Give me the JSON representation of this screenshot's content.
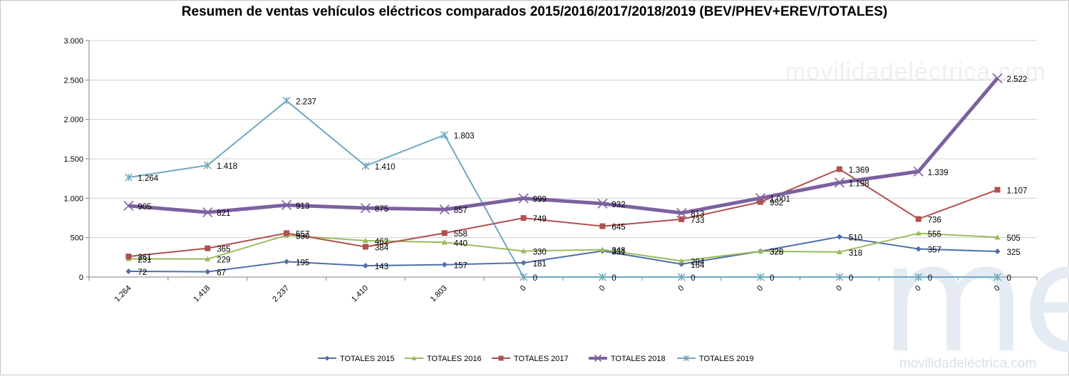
{
  "chart_data": {
    "type": "line",
    "title": "Resumen de ventas vehículos eléctricos comparados 2015/2016/2017/2018/2019  (BEV/PHEV+EREV/TOTALES)",
    "categories": [
      "1.264",
      "1.418",
      "2.237",
      "1.410",
      "1.803",
      "0",
      "0",
      "0",
      "0",
      "0",
      "0",
      "0"
    ],
    "ylim": [
      0,
      3000
    ],
    "yticks": [
      0,
      500,
      1000,
      1500,
      2000,
      2500,
      3000
    ],
    "ytick_labels": [
      "0",
      "500",
      "1.000",
      "1.500",
      "2.000",
      "2.500",
      "3.000"
    ],
    "grid": "horizontal",
    "legend_position": "bottom",
    "series": [
      {
        "name": "TOTALES 2015",
        "color": "#4f6fa8",
        "marker": "diamond",
        "values": [
          72,
          67,
          195,
          143,
          157,
          181,
          331,
          164,
          328,
          510,
          357,
          325
        ],
        "labels": [
          "72",
          "67",
          "195",
          "143",
          "157",
          "181",
          "331",
          "164",
          "328",
          "510",
          "357",
          "325"
        ]
      },
      {
        "name": "TOTALES 2016",
        "color": "#9bbb59",
        "marker": "triangle",
        "values": [
          231,
          229,
          530,
          462,
          440,
          330,
          348,
          204,
          328,
          318,
          555,
          505
        ],
        "labels": [
          "231",
          "229",
          "530",
          "462",
          "440",
          "330",
          "348",
          "204",
          "328",
          "318",
          "555",
          "505"
        ]
      },
      {
        "name": "TOTALES 2017",
        "color": "#b0504d",
        "marker": "square",
        "values": [
          261,
          365,
          557,
          384,
          558,
          749,
          645,
          733,
          952,
          1369,
          736,
          1107
        ],
        "labels": [
          "261",
          "365",
          "557",
          "384",
          "558",
          "749",
          "645",
          "733",
          "952",
          "1.369",
          "736",
          "1.107"
        ]
      },
      {
        "name": "TOTALES 2018",
        "color": "#7d60a0",
        "marker": "x",
        "values": [
          905,
          821,
          913,
          875,
          857,
          999,
          932,
          813,
          1001,
          1198,
          1339,
          2522
        ],
        "labels": [
          "905",
          "821",
          "913",
          "875",
          "857",
          "999",
          "932",
          "813",
          "1.001",
          "1.198",
          "1.339",
          "2.522"
        ]
      },
      {
        "name": "TOTALES 2019",
        "color": "#6ea9c1",
        "marker": "star",
        "values": [
          1264,
          1418,
          2237,
          1410,
          1803,
          0,
          0,
          0,
          0,
          0,
          0,
          0
        ],
        "labels": [
          "1.264",
          "1.418",
          "2.237",
          "1.410",
          "1.803",
          "0",
          "0",
          "0",
          "0",
          "0",
          "0",
          "0"
        ]
      }
    ]
  },
  "watermark": {
    "text": "movilidadeléctrica.com",
    "logo": "me",
    "text_small": "movilidadeléctrica.com"
  }
}
